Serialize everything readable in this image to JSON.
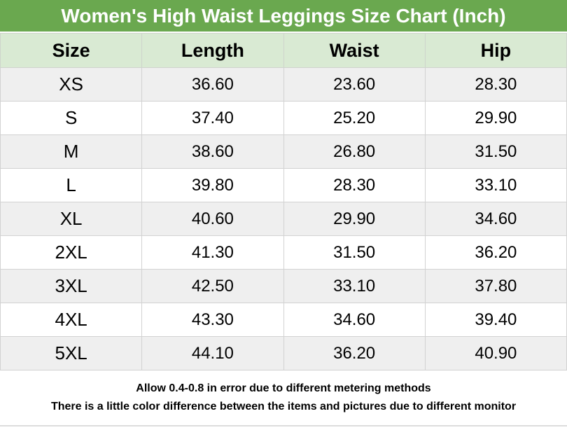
{
  "title": "Women's High Waist Leggings Size Chart (Inch)",
  "table": {
    "columns": [
      "Size",
      "Length",
      "Waist",
      "Hip"
    ],
    "rows": [
      [
        "XS",
        "36.60",
        "23.60",
        "28.30"
      ],
      [
        "S",
        "37.40",
        "25.20",
        "29.90"
      ],
      [
        "M",
        "38.60",
        "26.80",
        "31.50"
      ],
      [
        "L",
        "39.80",
        "28.30",
        "33.10"
      ],
      [
        "XL",
        "40.60",
        "29.90",
        "34.60"
      ],
      [
        "2XL",
        "41.30",
        "31.50",
        "36.20"
      ],
      [
        "3XL",
        "42.50",
        "33.10",
        "37.80"
      ],
      [
        "4XL",
        "43.30",
        "34.60",
        "39.40"
      ],
      [
        "5XL",
        "44.10",
        "36.20",
        "40.90"
      ]
    ]
  },
  "footer": {
    "line1": "Allow 0.4-0.8 in error due to different metering methods",
    "line2": "There is a little color difference between the items and pictures due to different monitor"
  },
  "colors": {
    "title_bar_green": "#6aa84f",
    "header_row_green": "#d9ead3",
    "alt_row_gray": "#efefef",
    "row_white": "#ffffff",
    "grid_border": "#d2d2d2",
    "title_text": "#ffffff",
    "body_text": "#000000"
  },
  "chart_data": {
    "type": "table",
    "title": "Women's High Waist Leggings Size Chart (Inch)",
    "unit": "Inch",
    "columns": [
      "Size",
      "Length",
      "Waist",
      "Hip"
    ],
    "rows": [
      {
        "size": "XS",
        "length": 36.6,
        "waist": 23.6,
        "hip": 28.3
      },
      {
        "size": "S",
        "length": 37.4,
        "waist": 25.2,
        "hip": 29.9
      },
      {
        "size": "M",
        "length": 38.6,
        "waist": 26.8,
        "hip": 31.5
      },
      {
        "size": "L",
        "length": 39.8,
        "waist": 28.3,
        "hip": 33.1
      },
      {
        "size": "XL",
        "length": 40.6,
        "waist": 29.9,
        "hip": 34.6
      },
      {
        "size": "2XL",
        "length": 41.3,
        "waist": 31.5,
        "hip": 36.2
      },
      {
        "size": "3XL",
        "length": 42.5,
        "waist": 33.1,
        "hip": 37.8
      },
      {
        "size": "4XL",
        "length": 43.3,
        "waist": 34.6,
        "hip": 39.4
      },
      {
        "size": "5XL",
        "length": 44.1,
        "waist": 36.2,
        "hip": 40.9
      }
    ],
    "notes": [
      "Allow 0.4-0.8 in error due to different metering methods",
      "There is a little color difference between the items and pictures due to different monitor"
    ]
  }
}
